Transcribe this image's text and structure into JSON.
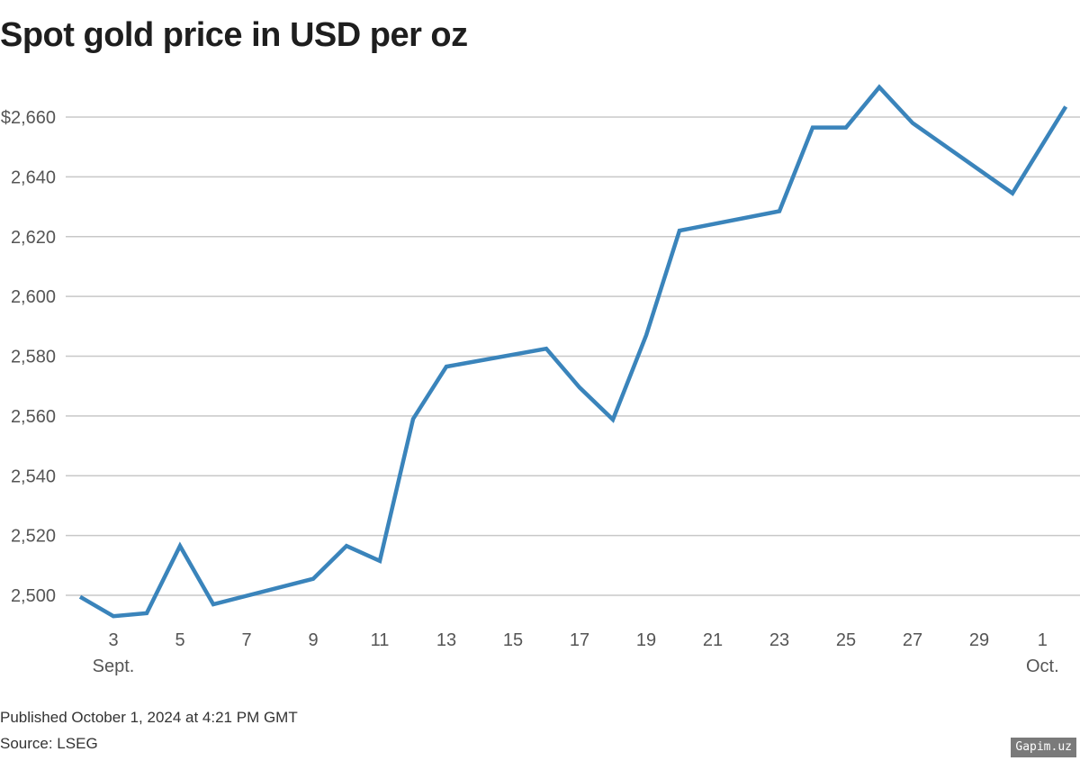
{
  "title": "Spot gold price in USD per oz",
  "footer": {
    "published": "Published October 1, 2024 at 4:21 PM GMT",
    "source": "Source: LSEG"
  },
  "watermark": "Gapim.uz",
  "colors": {
    "line": "#3a84bb",
    "grid": "#c8c8c8",
    "text": "#555555",
    "title": "#1e1e1e"
  },
  "chart_data": {
    "type": "line",
    "title": "Spot gold price in USD per oz",
    "xlabel": "",
    "ylabel": "USD per oz",
    "ylim": [
      2490,
      2672
    ],
    "grid": true,
    "legend": null,
    "y_ticks": [
      {
        "value": 2500,
        "label": "2,500"
      },
      {
        "value": 2520,
        "label": "2,520"
      },
      {
        "value": 2540,
        "label": "2,540"
      },
      {
        "value": 2560,
        "label": "2,560"
      },
      {
        "value": 2580,
        "label": "2,580"
      },
      {
        "value": 2600,
        "label": "2,600"
      },
      {
        "value": 2620,
        "label": "2,620"
      },
      {
        "value": 2640,
        "label": "2,640"
      },
      {
        "value": 2660,
        "label": "$2,660"
      }
    ],
    "x_ticks": [
      {
        "day": 3,
        "label": "3",
        "sublabel": "Sept."
      },
      {
        "day": 5,
        "label": "5"
      },
      {
        "day": 7,
        "label": "7"
      },
      {
        "day": 9,
        "label": "9"
      },
      {
        "day": 11,
        "label": "11"
      },
      {
        "day": 13,
        "label": "13"
      },
      {
        "day": 15,
        "label": "15"
      },
      {
        "day": 17,
        "label": "17"
      },
      {
        "day": 19,
        "label": "19"
      },
      {
        "day": 21,
        "label": "21"
      },
      {
        "day": 23,
        "label": "23"
      },
      {
        "day": 25,
        "label": "25"
      },
      {
        "day": 27,
        "label": "27"
      },
      {
        "day": 29,
        "label": "29"
      },
      {
        "day": 30.9,
        "label": "1",
        "sublabel": "Oct."
      }
    ],
    "series": [
      {
        "name": "Spot gold",
        "points": [
          {
            "date": "Sept 2",
            "day": 2,
            "value": 2499.5
          },
          {
            "date": "Sept 3",
            "day": 3,
            "value": 2493
          },
          {
            "date": "Sept 4",
            "day": 4,
            "value": 2494
          },
          {
            "date": "Sept 5",
            "day": 5,
            "value": 2516.5
          },
          {
            "date": "Sept 6",
            "day": 6,
            "value": 2497
          },
          {
            "date": "Sept 9",
            "day": 9,
            "value": 2505.5
          },
          {
            "date": "Sept 10",
            "day": 10,
            "value": 2516.5
          },
          {
            "date": "Sept 11",
            "day": 11,
            "value": 2511.5
          },
          {
            "date": "Sept 12",
            "day": 12,
            "value": 2559
          },
          {
            "date": "Sept 13",
            "day": 13,
            "value": 2576.5
          },
          {
            "date": "Sept 16",
            "day": 16,
            "value": 2582.5
          },
          {
            "date": "Sept 17",
            "day": 17,
            "value": 2569.5
          },
          {
            "date": "Sept 18",
            "day": 18,
            "value": 2558.8
          },
          {
            "date": "Sept 19",
            "day": 19,
            "value": 2587
          },
          {
            "date": "Sept 20",
            "day": 20,
            "value": 2622
          },
          {
            "date": "Sept 23",
            "day": 23,
            "value": 2628.5
          },
          {
            "date": "Sept 24",
            "day": 24,
            "value": 2656.5
          },
          {
            "date": "Sept 25",
            "day": 25,
            "value": 2656.5
          },
          {
            "date": "Sept 26",
            "day": 26,
            "value": 2670
          },
          {
            "date": "Sept 27",
            "day": 27,
            "value": 2658
          },
          {
            "date": "Sept 30",
            "day": 30,
            "value": 2634.5
          },
          {
            "date": "Oct 1",
            "day": 31.6,
            "value": 2663.5
          }
        ]
      }
    ]
  }
}
